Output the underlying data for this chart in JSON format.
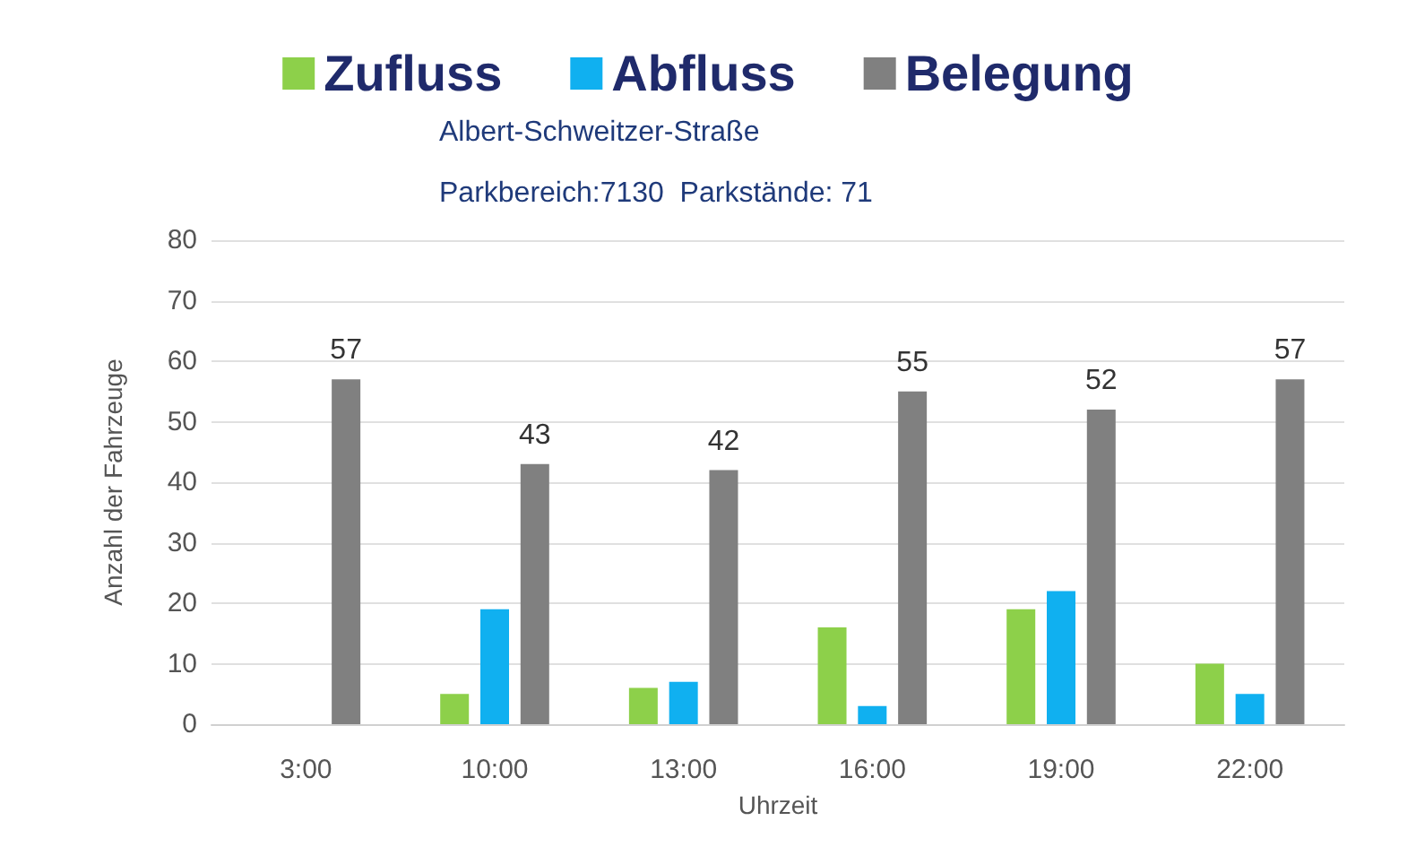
{
  "chart_data": {
    "type": "bar",
    "subtitle": "Albert-Schweitzer-Straße",
    "annotations": [
      "Parkbereich:7130  Parkstände: 71"
    ],
    "xlabel": "Uhrzeit",
    "ylabel": "Anzahl der Fahrzeuge",
    "categories": [
      "3:00",
      "10:00",
      "13:00",
      "16:00",
      "19:00",
      "22:00"
    ],
    "series": [
      {
        "name": "Zufluss",
        "color": "#8dd04a",
        "values": [
          0,
          5,
          6,
          16,
          19,
          10
        ]
      },
      {
        "name": "Abfluss",
        "color": "#10b0f0",
        "values": [
          0,
          19,
          7,
          3,
          22,
          5
        ]
      },
      {
        "name": "Belegung",
        "color": "#808080",
        "values": [
          57,
          43,
          42,
          55,
          52,
          57
        ],
        "value_labels": [
          "57",
          "43",
          "42",
          "55",
          "52",
          "57"
        ]
      }
    ],
    "ylim": [
      0,
      80
    ],
    "yticks": [
      0,
      10,
      20,
      30,
      40,
      50,
      60,
      70,
      80
    ],
    "grid": "y",
    "legend": "top"
  }
}
